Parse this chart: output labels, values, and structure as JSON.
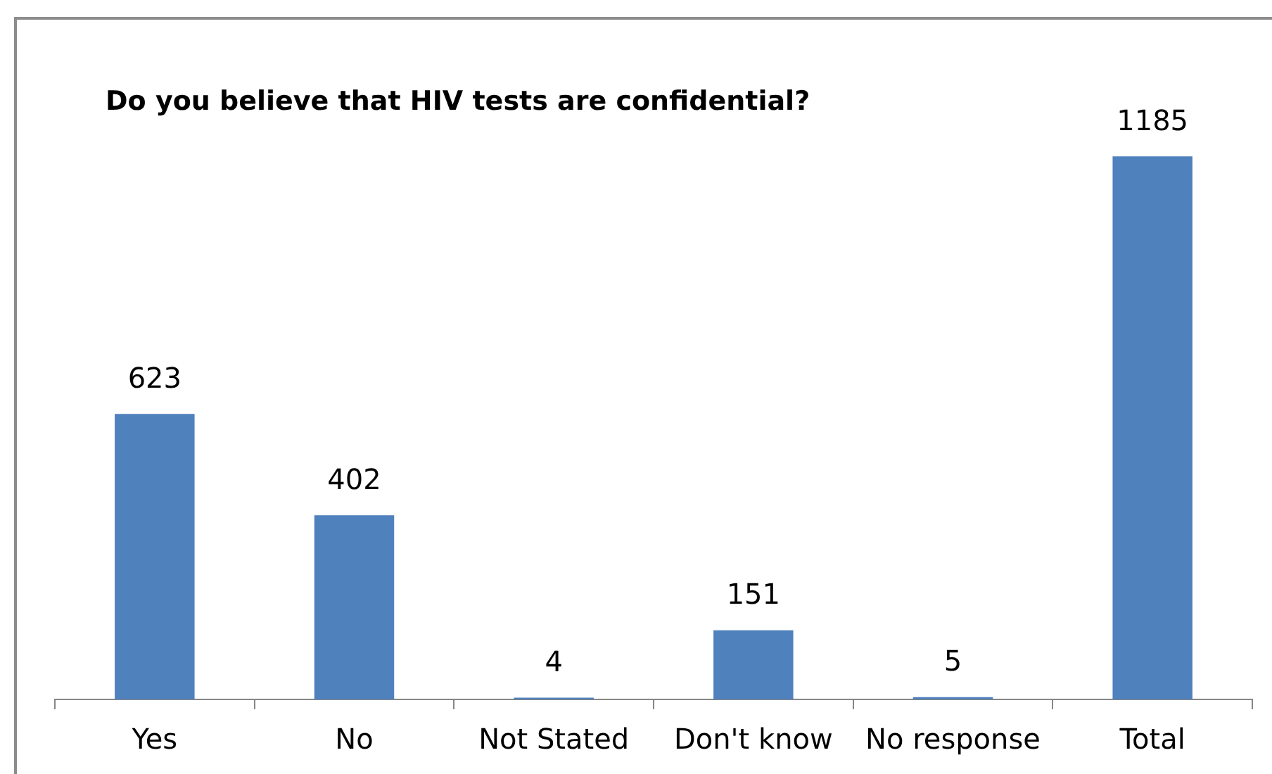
{
  "chart_data": {
    "type": "bar",
    "title": "Do you believe that HIV tests are confidential?",
    "categories": [
      "Yes",
      "No",
      "Not Stated",
      "Don't know",
      "No response",
      "Total"
    ],
    "values": [
      623,
      402,
      4,
      151,
      5,
      1185
    ],
    "color": "#4f81bd",
    "data_labels": true
  }
}
